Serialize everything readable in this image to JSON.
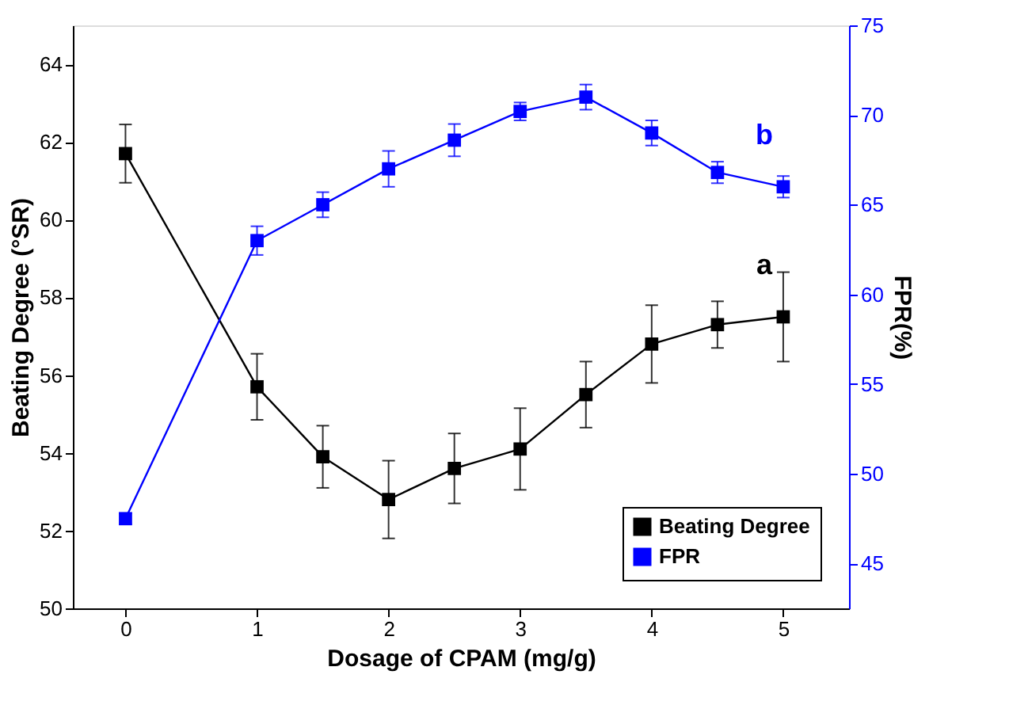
{
  "chart_data": {
    "type": "line",
    "xlabel": "Dosage of CPAM (mg/g)",
    "ylabel": "Beating Degree (°SR)",
    "y2label": "FPR(%)",
    "x": [
      0,
      1,
      1.5,
      2,
      2.5,
      3,
      3.5,
      4,
      4.5,
      5
    ],
    "series": [
      {
        "name": "Beating Degree",
        "color": "#000000",
        "values": [
          61.7,
          55.7,
          53.9,
          52.8,
          53.6,
          54.1,
          55.5,
          56.8,
          57.3,
          57.5
        ],
        "errors": [
          0.75,
          0.85,
          0.8,
          1.0,
          0.9,
          1.05,
          0.85,
          1.0,
          0.6,
          1.15
        ]
      },
      {
        "name": "FPR",
        "color": "#0000ff",
        "axis": "y2",
        "values": [
          47.5,
          63.0,
          65.0,
          67.0,
          68.6,
          70.2,
          71.0,
          69.0,
          66.8,
          66.0
        ],
        "errors": [
          0.3,
          0.8,
          0.7,
          1.0,
          0.9,
          0.5,
          0.7,
          0.7,
          0.6,
          0.6
        ]
      }
    ],
    "annotations": [
      "a",
      "b"
    ],
    "xlim": [
      -0.4,
      5.5
    ],
    "xticks": [
      0,
      1,
      2,
      3,
      4,
      5
    ],
    "ylim": [
      50,
      65
    ],
    "yticks": [
      50,
      52,
      54,
      56,
      58,
      60,
      62,
      64
    ],
    "y2lim": [
      42.5,
      75
    ],
    "y2ticks": [
      45,
      50,
      55,
      60,
      65,
      70,
      75
    ],
    "legend": "bottom right",
    "marker": "square",
    "line_style": "solid",
    "grid": false
  }
}
